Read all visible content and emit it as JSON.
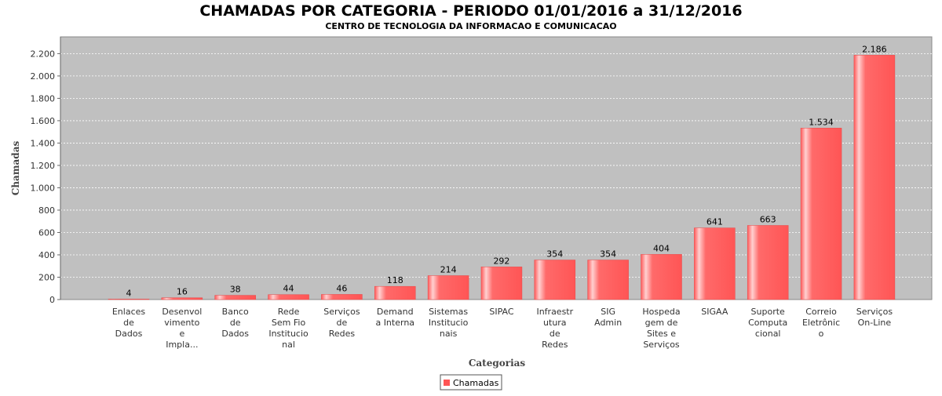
{
  "chart_data": {
    "type": "bar",
    "title": "CHAMADAS POR CATEGORIA - PERIODO 01/01/2016 a 31/12/2016",
    "subtitle": "CENTRO DE TECNOLOGIA DA INFORMACAO E COMUNICACAO",
    "xlabel": "Categorias",
    "ylabel": "Chamadas",
    "ylim": [
      0,
      2350
    ],
    "yticks": [
      0,
      200,
      400,
      600,
      800,
      1000,
      1200,
      1400,
      1600,
      1800,
      2000,
      2200
    ],
    "ytick_labels": [
      "0",
      "200",
      "400",
      "600",
      "800",
      "1.000",
      "1.200",
      "1.400",
      "1.600",
      "1.800",
      "2.000",
      "2.200"
    ],
    "grid": true,
    "legend_position": "bottom-center",
    "series": [
      {
        "name": "Chamadas",
        "color": "#ff5555",
        "values": [
          4,
          16,
          38,
          44,
          46,
          118,
          214,
          292,
          354,
          354,
          404,
          641,
          663,
          1534,
          2186
        ],
        "value_labels": [
          "4",
          "16",
          "38",
          "44",
          "46",
          "118",
          "214",
          "292",
          "354",
          "354",
          "404",
          "641",
          "663",
          "1.534",
          "2.186"
        ]
      }
    ],
    "categories": [
      [
        "Enlaces",
        "de",
        "Dados"
      ],
      [
        "Desenvol",
        "vimento",
        "e",
        "Impla..."
      ],
      [
        "Banco",
        "de",
        "Dados"
      ],
      [
        "Rede",
        "Sem Fio",
        "Institucio",
        "nal"
      ],
      [
        "Serviços",
        "de",
        "Redes"
      ],
      [
        "Demand",
        "a Interna"
      ],
      [
        "Sistemas",
        "",
        "Institucio",
        "nais"
      ],
      [
        "SIPAC"
      ],
      [
        "Infraestr",
        "utura",
        "de",
        "Redes"
      ],
      [
        "SIG",
        "Admin"
      ],
      [
        "Hospeda",
        "gem de",
        "Sites e",
        "Serviços"
      ],
      [
        "SIGAA"
      ],
      [
        "Suporte",
        "Computa",
        "cional"
      ],
      [
        "Correio",
        "Eletrônic",
        "o"
      ],
      [
        "Serviços",
        "On-Line"
      ]
    ]
  }
}
